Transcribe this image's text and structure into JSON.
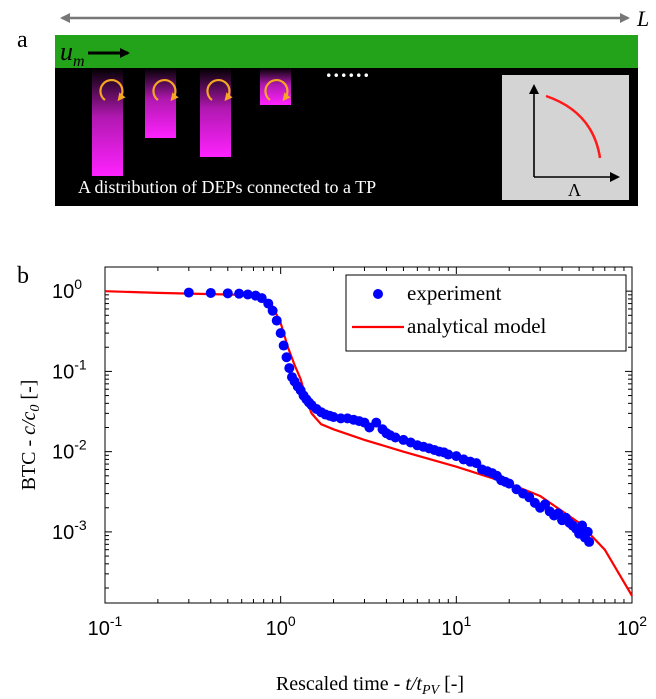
{
  "panel_a": {
    "letter": "a",
    "length_label": "L",
    "velocity_label": "u",
    "velocity_subscript": "m",
    "dots": "......",
    "caption": "A distribution of DEPs connected to a TP",
    "inset_xlabel": "Λ",
    "colors": {
      "channel": "#22a31a",
      "background": "#000000",
      "pit": "#e81ee8",
      "arrow": "#f5a623",
      "inset_bg": "#d4d4d4",
      "inset_curve": "#ff1a1a"
    }
  },
  "panel_b": {
    "letter": "b",
    "ylabel_prefix": "BTC - ",
    "ylabel_math": "c/c",
    "ylabel_math_sub": "0",
    "ylabel_suffix": " [-]",
    "xlabel_prefix": "Rescaled time - ",
    "xlabel_math": "t/t",
    "xlabel_math_sub": "PV",
    "xlabel_suffix": " [-]",
    "legend": {
      "experiment": "experiment",
      "model": "analytical model"
    },
    "xticks": [
      {
        "base": "10",
        "exp": "-1"
      },
      {
        "base": "10",
        "exp": "0"
      },
      {
        "base": "10",
        "exp": "1"
      },
      {
        "base": "10",
        "exp": "2"
      }
    ],
    "yticks": [
      {
        "base": "10",
        "exp": "0"
      },
      {
        "base": "10",
        "exp": "-1"
      },
      {
        "base": "10",
        "exp": "-2"
      },
      {
        "base": "10",
        "exp": "-3"
      }
    ]
  },
  "chart_data": {
    "type": "scatter",
    "xscale": "log",
    "yscale": "log",
    "xlim": [
      0.1,
      100
    ],
    "ylim": [
      0.00013,
      2.0
    ],
    "grid": false,
    "legend_position": "top-right",
    "series": [
      {
        "name": "experiment",
        "color": "#0000ff",
        "kind": "scatter",
        "x": [
          0.3,
          0.4,
          0.5,
          0.58,
          0.65,
          0.72,
          0.78,
          0.85,
          0.9,
          0.95,
          1.0,
          1.04,
          1.08,
          1.12,
          1.16,
          1.2,
          1.25,
          1.3,
          1.35,
          1.4,
          1.45,
          1.5,
          1.6,
          1.7,
          1.8,
          1.9,
          2.0,
          2.2,
          2.4,
          2.6,
          2.8,
          3.0,
          3.2,
          3.5,
          3.8,
          4.0,
          4.2,
          4.5,
          5.0,
          5.5,
          6.0,
          6.5,
          7.0,
          7.5,
          8.0,
          8.5,
          9.0,
          10.0,
          11.0,
          12.0,
          13.0,
          14.0,
          15.0,
          16.0,
          17.0,
          18.0,
          19.0,
          20.0,
          22.0,
          24.0,
          26.0,
          28.0,
          30.0,
          32.0,
          34.0,
          36.0,
          38.0,
          40.0,
          42.0,
          44.0,
          46.0,
          48.0,
          50.0,
          52.0,
          54.0,
          56.0,
          57.0
        ],
        "y": [
          0.96,
          0.95,
          0.94,
          0.93,
          0.91,
          0.88,
          0.82,
          0.7,
          0.57,
          0.43,
          0.3,
          0.21,
          0.15,
          0.11,
          0.085,
          0.075,
          0.065,
          0.058,
          0.05,
          0.045,
          0.041,
          0.038,
          0.034,
          0.031,
          0.029,
          0.028,
          0.027,
          0.026,
          0.026,
          0.025,
          0.024,
          0.023,
          0.02,
          0.023,
          0.019,
          0.017,
          0.016,
          0.015,
          0.014,
          0.013,
          0.012,
          0.0115,
          0.011,
          0.0105,
          0.01,
          0.0098,
          0.0092,
          0.0088,
          0.008,
          0.0075,
          0.0072,
          0.006,
          0.0057,
          0.0054,
          0.005,
          0.0044,
          0.0042,
          0.004,
          0.0034,
          0.003,
          0.0027,
          0.0023,
          0.002,
          0.0022,
          0.0018,
          0.0016,
          0.0017,
          0.0014,
          0.0015,
          0.0013,
          0.0012,
          0.0011,
          0.00095,
          0.0012,
          0.00085,
          0.001,
          0.00075
        ]
      },
      {
        "name": "analytical model",
        "color": "#ff0000",
        "kind": "line",
        "x": [
          0.1,
          0.2,
          0.4,
          0.6,
          0.75,
          0.9,
          1.0,
          1.1,
          1.2,
          1.3,
          1.4,
          1.5,
          1.7,
          2.0,
          3.0,
          5.0,
          10.0,
          20.0,
          30.0,
          50.0,
          70.0,
          100.0
        ],
        "y": [
          1.0,
          0.95,
          0.92,
          0.9,
          0.85,
          0.65,
          0.4,
          0.2,
          0.12,
          0.08,
          0.045,
          0.03,
          0.022,
          0.019,
          0.014,
          0.01,
          0.0065,
          0.004,
          0.0028,
          0.0013,
          0.0006,
          0.00016
        ]
      }
    ]
  }
}
